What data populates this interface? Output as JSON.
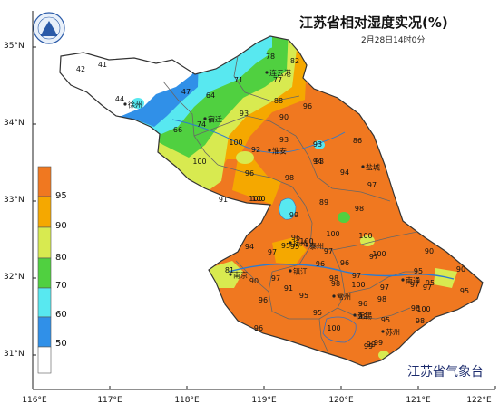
{
  "title": "江苏省相对湿度实况(%)",
  "subtitle": "2月28日14时0分",
  "agency": "江苏省气象台",
  "logo": {
    "icon": "meteorological-bureau-logo-icon",
    "text": "江苏省气象局"
  },
  "lat_labels": [
    "35°N",
    "34°N",
    "33°N",
    "32°N",
    "31°N"
  ],
  "lon_labels": [
    "116°E",
    "117°E",
    "118°E",
    "119°E",
    "120°E",
    "121°E",
    "122°E"
  ],
  "legend": {
    "labels": [
      "95",
      "90",
      "80",
      "70",
      "60",
      "50"
    ],
    "colors": [
      "#f07820",
      "#f5a800",
      "#d8ea50",
      "#50d040",
      "#58e8f0",
      "#3090e8",
      "#ffffff"
    ]
  },
  "cities": [
    "连云港",
    "宿迁",
    "徐州",
    "淮安",
    "盐城",
    "扬州",
    "泰州",
    "南京",
    "镇江",
    "常州",
    "南通",
    "无锡",
    "苏州"
  ],
  "values": [
    "42",
    "41",
    "44",
    "47",
    "64",
    "71",
    "78",
    "82",
    "77",
    "74",
    "66",
    "93",
    "88",
    "90",
    "96",
    "100",
    "92",
    "93",
    "94",
    "86",
    "100",
    "96",
    "93",
    "93",
    "94",
    "100",
    "98",
    "97",
    "91",
    "100",
    "99",
    "89",
    "98",
    "100",
    "96",
    "95",
    "97",
    "100",
    "95",
    "94",
    "97",
    "100",
    "97",
    "96",
    "100",
    "98",
    "90",
    "81",
    "90",
    "97",
    "96",
    "97",
    "91",
    "98",
    "100",
    "97",
    "95",
    "97",
    "90",
    "97",
    "95",
    "96",
    "95",
    "98",
    "96",
    "99",
    "95",
    "95",
    "96",
    "100",
    "95",
    "99",
    "98",
    "98",
    "99",
    "99",
    "100"
  ]
}
